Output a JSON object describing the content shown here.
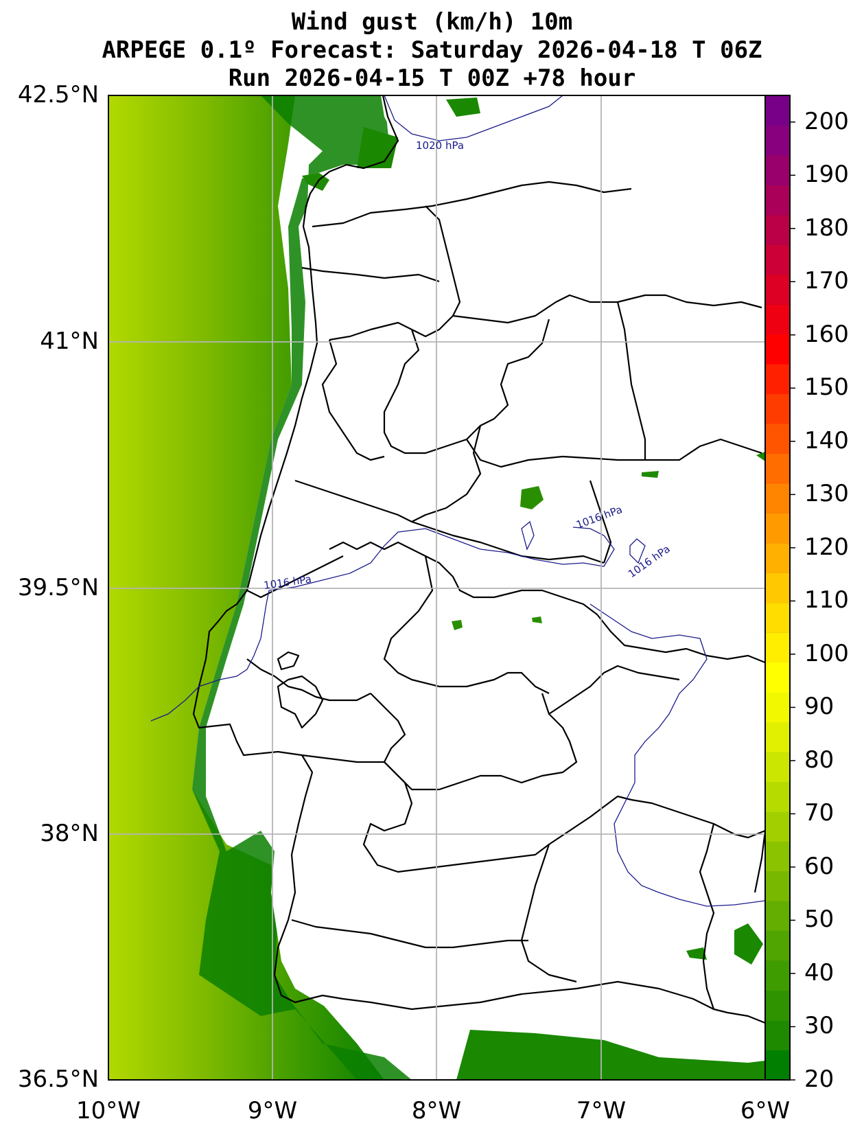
{
  "title": {
    "line1": "Wind gust (km/h) 10m",
    "line2": "ARPEGE 0.1º Forecast: Saturday 2026-04-18 T 06Z",
    "line3": "Run 2026-04-15 T 00Z +78 hour"
  },
  "axes": {
    "lat_labels": [
      "42.5°N",
      "41°N",
      "39.5°N",
      "38°N",
      "36.5°N"
    ],
    "lon_labels": [
      "10°W",
      "9°W",
      "8°W",
      "7°W",
      "6°W"
    ],
    "lat_range": [
      36.5,
      42.5
    ],
    "lon_range": [
      -10,
      -6
    ],
    "grid": true
  },
  "colorbar": {
    "min": 20,
    "max": 205,
    "labels": [
      "20",
      "30",
      "40",
      "50",
      "60",
      "70",
      "80",
      "90",
      "100",
      "110",
      "120",
      "130",
      "140",
      "150",
      "160",
      "170",
      "180",
      "190",
      "200"
    ],
    "colors": [
      "#007f00",
      "#1e8a00",
      "#2f9300",
      "#3f9c00",
      "#51a500",
      "#63ae00",
      "#78b900",
      "#8cc300",
      "#a2cf00",
      "#b6db00",
      "#cbe600",
      "#e0f000",
      "#f2f800",
      "#ffff00",
      "#ffee00",
      "#ffdd00",
      "#ffc800",
      "#ffb000",
      "#ff9a00",
      "#ff8400",
      "#ff6c00",
      "#ff5400",
      "#ff3c00",
      "#ff2000",
      "#ff0000",
      "#ee0012",
      "#dd0024",
      "#cc0036",
      "#bb0048",
      "#aa005a",
      "#99006c",
      "#88007e",
      "#780088"
    ]
  },
  "isobars": [
    {
      "label": "1020 hPa"
    },
    {
      "label": "1016 hPa"
    },
    {
      "label": "1016 hPa"
    },
    {
      "label": "1016 hPa"
    }
  ]
}
